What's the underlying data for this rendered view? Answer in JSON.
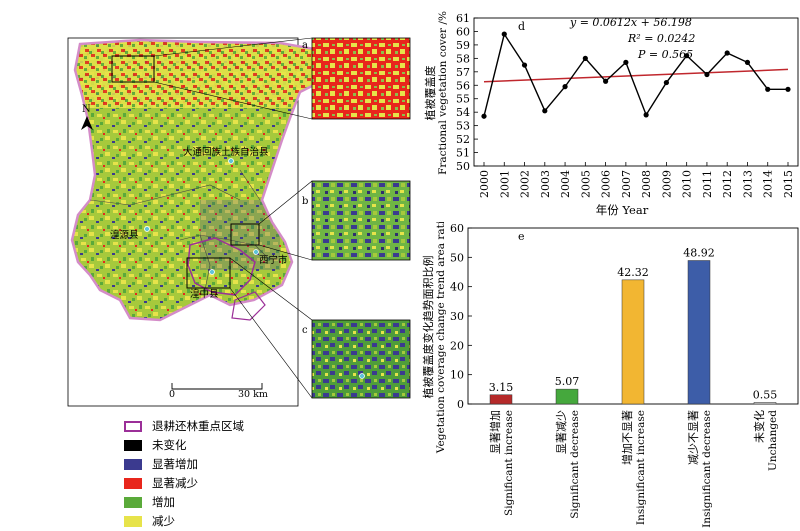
{
  "map": {
    "labels": {
      "datong": "大通回族土族自治县",
      "huangyuan": "湟源县",
      "xining": "西宁市",
      "huangzhong": "湟中县",
      "north": "N"
    },
    "scale": {
      "zero": "0",
      "dist": "30 km"
    },
    "insets": [
      "a",
      "b",
      "c"
    ]
  },
  "legend": {
    "items": [
      {
        "label": "退耕还林重点区域",
        "color": "#9b2f98",
        "style": "outline"
      },
      {
        "label": "未变化",
        "color": "#000000",
        "style": "fill"
      },
      {
        "label": "显著增加",
        "color": "#3b3a8f",
        "style": "fill"
      },
      {
        "label": "显著减少",
        "color": "#e8261c",
        "style": "fill"
      },
      {
        "label": "增加",
        "color": "#5aaa3a",
        "style": "fill"
      },
      {
        "label": "减少",
        "color": "#e7e34a",
        "style": "fill"
      }
    ]
  },
  "chart_data": [
    {
      "type": "line",
      "panel": "d",
      "ylabel_cn": "植被覆盖度",
      "ylabel_en": "Fractional vegetation cover /%",
      "xlabel": "年份 Year",
      "x": [
        2000,
        2001,
        2002,
        2003,
        2004,
        2005,
        2006,
        2007,
        2008,
        2009,
        2010,
        2011,
        2012,
        2013,
        2014,
        2015
      ],
      "series": [
        {
          "values": [
            53.7,
            59.8,
            57.5,
            54.1,
            55.9,
            58.0,
            56.3,
            57.7,
            53.8,
            56.2,
            58.2,
            56.8,
            58.4,
            57.7,
            55.7,
            55.7
          ]
        }
      ],
      "ylim": [
        50,
        61
      ],
      "yticks": [
        50,
        51,
        52,
        53,
        54,
        55,
        56,
        57,
        58,
        59,
        60,
        61
      ],
      "trend": {
        "slope": 0.0612,
        "intercept": 56.198
      },
      "equation": "y = 0.0612x + 56.198",
      "r2": "R² = 0.0242",
      "p": "P = 0.565",
      "line_color": "#000000",
      "trend_color": "#c0272d"
    },
    {
      "type": "bar",
      "panel": "e",
      "ylabel_cn": "植被覆盖度变化趋势面积比例",
      "ylabel_en": "Vegetation coverage change trend area ratio/%",
      "categories": [
        {
          "cn": "显著增加",
          "en": "Significant increase"
        },
        {
          "cn": "显著减少",
          "en": "Significant decrease"
        },
        {
          "cn": "增加不显著",
          "en": "Insignificant increase"
        },
        {
          "cn": "减少不显著",
          "en": "Insignificant decrease"
        },
        {
          "cn": "未变化",
          "en": "Unchanged"
        }
      ],
      "values": [
        3.15,
        5.07,
        42.32,
        48.92,
        0.55
      ],
      "value_labels": [
        "3.15",
        "5.07",
        "42.32",
        "48.92",
        "0.55"
      ],
      "colors": [
        "#b52a2a",
        "#45a83d",
        "#f2b632",
        "#3d5da8",
        "#d0d0d0"
      ],
      "ylim": [
        0,
        60
      ],
      "yticks": [
        0,
        10,
        20,
        30,
        40,
        50,
        60
      ]
    }
  ]
}
